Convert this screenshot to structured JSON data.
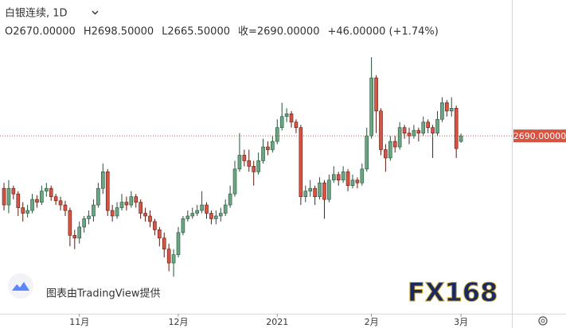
{
  "chart_data": {
    "type": "candlestick",
    "symbol": "白银连续, 1D",
    "ohlc_labels": [
      "O2670.00000",
      "H2698.50000",
      "L2665.50000",
      "收=2690.00000",
      "+46.00000 (+1.74%)"
    ],
    "open": [
      2500,
      2440,
      2500,
      2480,
      2430,
      2410,
      2420,
      2460,
      2450,
      2490,
      2500,
      2470,
      2455,
      2440,
      2420,
      2330,
      2320,
      2360,
      2390,
      2400,
      2440,
      2500,
      2560,
      2420,
      2400,
      2430,
      2450,
      2440,
      2470,
      2450,
      2410,
      2400,
      2380,
      2350,
      2320,
      2280,
      2230,
      2260,
      2340,
      2390,
      2400,
      2410,
      2420,
      2440,
      2410,
      2390,
      2400,
      2410,
      2440,
      2480,
      2570,
      2620,
      2600,
      2580,
      2560,
      2600,
      2650,
      2640,
      2670,
      2720,
      2760,
      2770,
      2740,
      2720,
      2470,
      2490,
      2500,
      2470,
      2520,
      2460,
      2530,
      2550,
      2530,
      2560,
      2510,
      2530,
      2520,
      2570,
      2690,
      2900,
      2780,
      2640,
      2610,
      2670,
      2650,
      2720,
      2700,
      2690,
      2710,
      2700,
      2740,
      2720,
      2700,
      2750,
      2810,
      2780,
      2790,
      2670
    ],
    "high": [
      2520,
      2530,
      2510,
      2490,
      2450,
      2440,
      2480,
      2475,
      2510,
      2520,
      2510,
      2480,
      2470,
      2455,
      2430,
      2350,
      2380,
      2400,
      2420,
      2460,
      2520,
      2590,
      2570,
      2440,
      2450,
      2480,
      2470,
      2490,
      2480,
      2460,
      2430,
      2420,
      2390,
      2360,
      2340,
      2300,
      2280,
      2360,
      2400,
      2420,
      2430,
      2440,
      2490,
      2450,
      2420,
      2420,
      2430,
      2460,
      2510,
      2600,
      2700,
      2640,
      2640,
      2600,
      2630,
      2680,
      2670,
      2690,
      2750,
      2810,
      2790,
      2780,
      2750,
      2730,
      2510,
      2530,
      2510,
      2540,
      2530,
      2550,
      2580,
      2560,
      2580,
      2570,
      2550,
      2540,
      2590,
      2720,
      2975,
      2910,
      2790,
      2660,
      2690,
      2690,
      2740,
      2730,
      2720,
      2730,
      2720,
      2760,
      2750,
      2730,
      2780,
      2830,
      2820,
      2830,
      2800,
      2698.5
    ],
    "low": [
      2420,
      2410,
      2460,
      2400,
      2380,
      2395,
      2410,
      2430,
      2440,
      2470,
      2455,
      2440,
      2420,
      2400,
      2290,
      2280,
      2300,
      2340,
      2370,
      2380,
      2430,
      2480,
      2400,
      2380,
      2390,
      2420,
      2420,
      2430,
      2430,
      2390,
      2380,
      2360,
      2330,
      2290,
      2250,
      2200,
      2180,
      2250,
      2330,
      2380,
      2390,
      2400,
      2410,
      2390,
      2370,
      2370,
      2380,
      2400,
      2430,
      2470,
      2560,
      2580,
      2560,
      2510,
      2550,
      2590,
      2620,
      2630,
      2660,
      2710,
      2740,
      2720,
      2700,
      2440,
      2450,
      2470,
      2440,
      2460,
      2390,
      2450,
      2520,
      2510,
      2520,
      2490,
      2500,
      2500,
      2510,
      2560,
      2680,
      2700,
      2620,
      2560,
      2600,
      2630,
      2640,
      2680,
      2660,
      2680,
      2670,
      2690,
      2700,
      2610,
      2690,
      2740,
      2760,
      2760,
      2610,
      2665.5
    ],
    "close": [
      2440,
      2500,
      2480,
      2430,
      2410,
      2420,
      2460,
      2450,
      2490,
      2500,
      2470,
      2455,
      2440,
      2420,
      2330,
      2320,
      2360,
      2390,
      2400,
      2440,
      2500,
      2560,
      2420,
      2400,
      2430,
      2450,
      2440,
      2470,
      2450,
      2410,
      2400,
      2380,
      2350,
      2320,
      2280,
      2230,
      2260,
      2340,
      2390,
      2400,
      2410,
      2420,
      2440,
      2410,
      2390,
      2400,
      2410,
      2440,
      2480,
      2570,
      2620,
      2600,
      2580,
      2560,
      2600,
      2650,
      2640,
      2670,
      2720,
      2760,
      2770,
      2740,
      2720,
      2470,
      2490,
      2500,
      2470,
      2520,
      2460,
      2530,
      2550,
      2530,
      2560,
      2510,
      2530,
      2520,
      2570,
      2690,
      2900,
      2780,
      2640,
      2610,
      2670,
      2650,
      2720,
      2700,
      2690,
      2710,
      2700,
      2740,
      2720,
      2700,
      2750,
      2810,
      2780,
      2790,
      2644,
      2690
    ],
    "up_color": "#6ba583",
    "down_color": "#d75442",
    "ylim": [
      2052,
      3182
    ],
    "xlim": [
      -0.85,
      107.8
    ],
    "xticks": [
      {
        "value": 16,
        "label": "11月"
      },
      {
        "value": 37,
        "label": "12月"
      },
      {
        "value": 58,
        "label": "2021"
      },
      {
        "value": 78,
        "label": "2月"
      },
      {
        "value": 97,
        "label": "3月"
      }
    ],
    "last_price": {
      "value": 2690,
      "label": "2690.00000"
    },
    "last_price_color": "#d75442",
    "attribution": "图表由TradingView提供",
    "watermark": "FX168"
  }
}
